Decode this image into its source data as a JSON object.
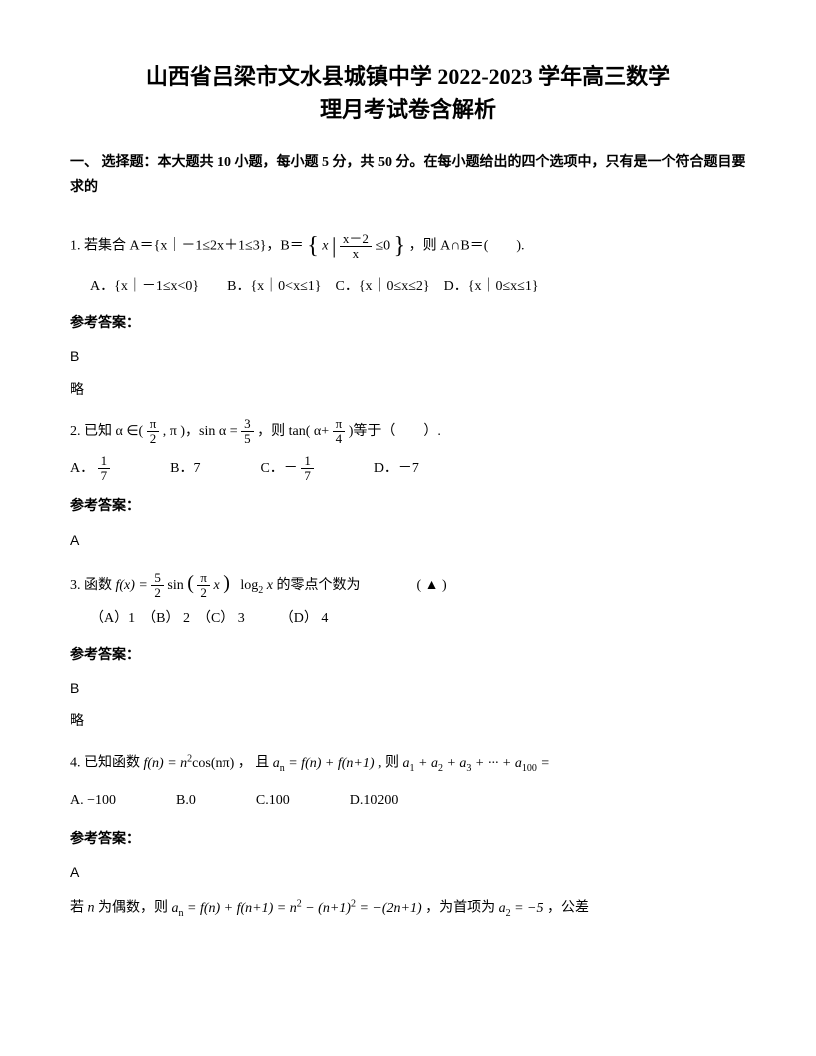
{
  "title_line1": "山西省吕梁市文水县城镇中学 2022-2023 学年高三数学",
  "title_line2": "理月考试卷含解析",
  "section_header": "一、 选择题：本大题共 10 小题，每小题 5 分，共 50 分。在每小题给出的四个选项中，只有是一个符合题目要求的",
  "q1": {
    "prefix": "1. 若集合 A＝{x｜－1≤2x＋1≤3}，B＝",
    "set_expr": "x",
    "frac_num": "x－2",
    "frac_den": "x",
    "suffix": "≤0",
    "after": "，则 A∩B＝(　　).",
    "options": "A．{x｜－1≤x<0}　　B．{x｜0<x≤1}　C．{x｜0≤x≤2}　D．{x｜0≤x≤1}",
    "answer_label": "参考答案：",
    "answer": "B",
    "brief": "略"
  },
  "q2": {
    "prefix": "2. 已知",
    "alpha": "α",
    "in": "∈(",
    "frac1_num": "π",
    "frac1_den": "2",
    "mid1": ",",
    "pi": "π",
    "mid2": ")，sin",
    "alpha2": "α",
    "eq": "=",
    "frac2_num": "3",
    "frac2_den": "5",
    "mid3": "，则 tan(",
    "alpha3": "α+",
    "frac3_num": "π",
    "frac3_den": "4",
    "mid4": ")等于（　　）.",
    "optA": "A．",
    "optA_num": "1",
    "optA_den": "7",
    "optB": "B．7",
    "optC": "C．－",
    "optC_num": "1",
    "optC_den": "7",
    "optD": "D．－7",
    "answer_label": "参考答案：",
    "answer": "A"
  },
  "q3": {
    "prefix": "3. 函数",
    "fx": "f(x) =",
    "frac_num": "5",
    "frac_den": "2",
    "sin": "sin",
    "inner_num": "π",
    "inner_den": "2",
    "x": "x",
    "log": "log",
    "log_base": "2",
    "log_arg": " x",
    "suffix": "的零点个数为　　　　( ▲ )",
    "options": "（A）1　（B） 2　（C） 3　　　（D） 4",
    "answer_label": "参考答案：",
    "answer": "B",
    "brief": "略"
  },
  "q4": {
    "prefix": "4. 已知函数",
    "fn": "f(n) = n",
    "sq": "2",
    "cos": "cos(nπ)",
    "mid1": "， 且",
    "an": "a",
    "n_sub": "n",
    "eq1": " = f(n) + f(n+1)",
    "mid2": ", 则",
    "sum": "a",
    "s1": "1",
    "plus1": " + a",
    "s2": "2",
    "plus2": " + a",
    "s3": "3",
    "plus3": " + ··· + a",
    "s100": "100",
    "eq2": " =",
    "optA": "A.",
    "optA_val": "−100",
    "optB": "B.0",
    "optC": "C.100",
    "optD": "D.10200",
    "answer_label": "参考答案：",
    "answer": "A",
    "explain_prefix": "若",
    "n_var": "n",
    "explain_mid": "为偶数，则",
    "deriv": "a",
    "dn": "n",
    "deriv_eq": " = f(n) + f(n+1) = n",
    "dsq1": "2",
    "dmid1": " − (n+1)",
    "dsq2": "2",
    "dmid2": " = −(2n+1)",
    "explain_end": "，为首项为",
    "a2": "a",
    "a2sub": "2",
    "a2eq": " = −5",
    "explain_last": "，公差"
  },
  "colors": {
    "text": "#000000",
    "background": "#ffffff"
  },
  "typography": {
    "body_font": "SimSun",
    "math_font": "Times New Roman",
    "title_size": 22,
    "body_size": 14
  }
}
